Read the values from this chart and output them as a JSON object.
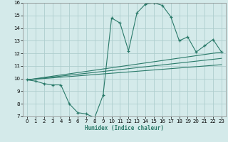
{
  "xlabel": "Humidex (Indice chaleur)",
  "bg_color": "#d4eaea",
  "grid_color": "#aecece",
  "line_color": "#2a7a6a",
  "xlim": [
    -0.5,
    23.5
  ],
  "ylim": [
    7,
    16
  ],
  "xticks": [
    0,
    1,
    2,
    3,
    4,
    5,
    6,
    7,
    8,
    9,
    10,
    11,
    12,
    13,
    14,
    15,
    16,
    17,
    18,
    19,
    20,
    21,
    22,
    23
  ],
  "yticks": [
    7,
    8,
    9,
    10,
    11,
    12,
    13,
    14,
    15,
    16
  ],
  "main_line_x": [
    0,
    1,
    2,
    3,
    4,
    5,
    6,
    7,
    8,
    9,
    10,
    11,
    12,
    13,
    14,
    15,
    16,
    17,
    18,
    19,
    20,
    21,
    22,
    23
  ],
  "main_line_y": [
    9.9,
    9.8,
    9.6,
    9.5,
    9.5,
    8.0,
    7.3,
    7.2,
    6.9,
    8.7,
    14.8,
    14.4,
    12.2,
    15.2,
    15.9,
    16.0,
    15.8,
    14.9,
    13.0,
    13.3,
    12.1,
    12.6,
    13.1,
    12.1
  ],
  "line2_x": [
    0,
    23
  ],
  "line2_y": [
    9.9,
    12.1
  ],
  "line3_x": [
    0,
    23
  ],
  "line3_y": [
    9.9,
    11.6
  ],
  "line4_x": [
    0,
    23
  ],
  "line4_y": [
    9.9,
    11.1
  ]
}
